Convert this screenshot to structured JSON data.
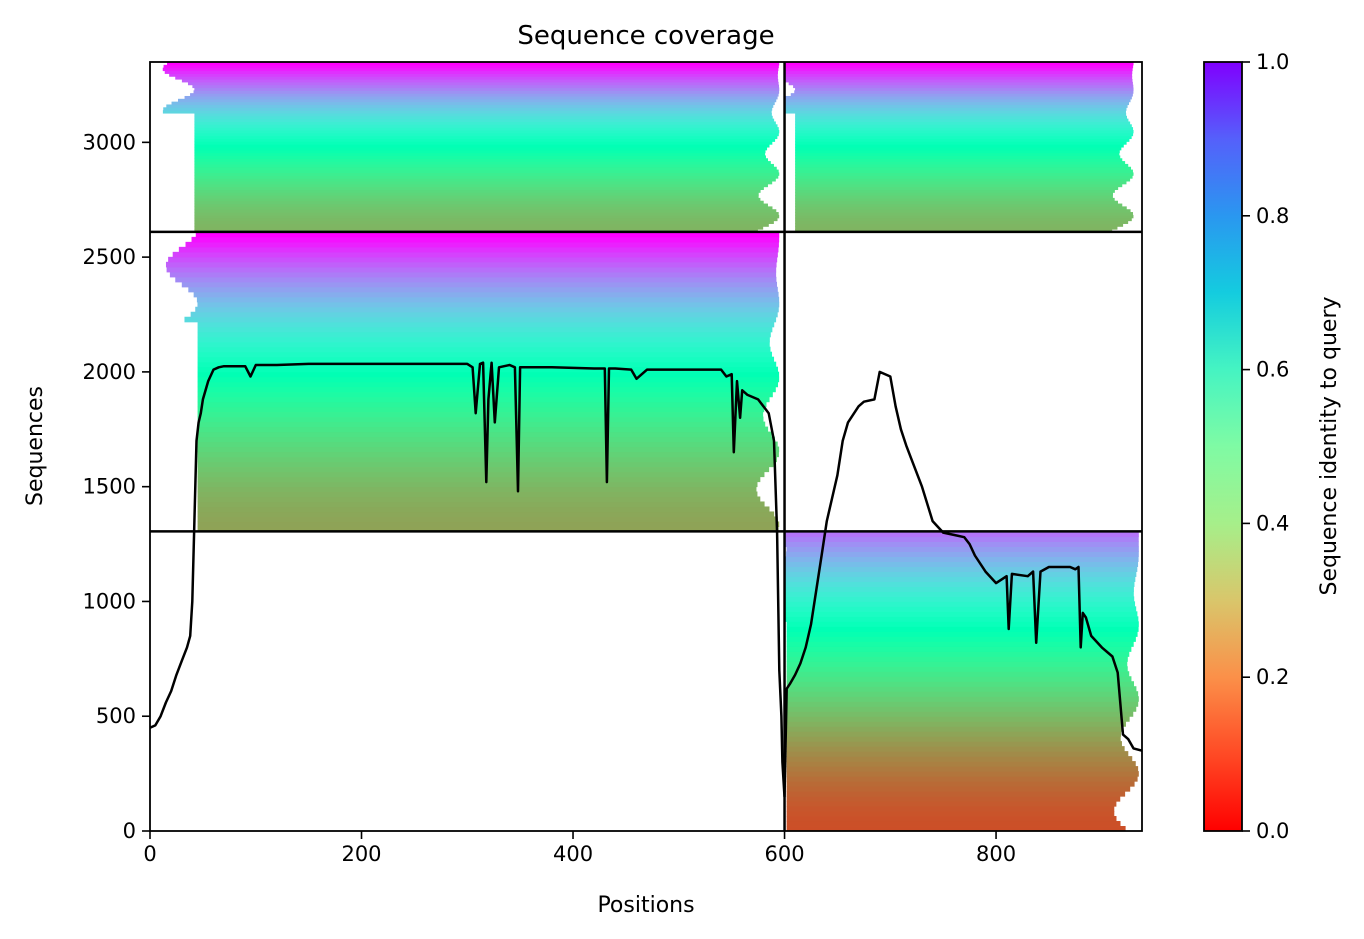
{
  "chart_data": {
    "type": "heatmap",
    "title": "Sequence coverage",
    "xlabel": "Positions",
    "ylabel": "Sequences",
    "xlim": [
      0,
      938
    ],
    "ylim": [
      0,
      3350
    ],
    "x_ticks": [
      0,
      200,
      400,
      600,
      800
    ],
    "y_ticks": [
      0,
      500,
      1000,
      1500,
      2000,
      2500,
      3000
    ],
    "grid": false,
    "colormap": "rainbow_r",
    "colorbar": {
      "label": "Sequence identity to query",
      "range": [
        0.0,
        1.0
      ],
      "ticks": [
        "0.0",
        "0.2",
        "0.4",
        "0.6",
        "0.8",
        "1.0"
      ]
    },
    "block_dividers": {
      "x": 600,
      "y": [
        1305,
        2610
      ]
    },
    "blocks": [
      {
        "name": "A_top_left",
        "x_range": [
          0,
          600
        ],
        "rows": [
          2610,
          3350
        ],
        "identity_range": [
          0.25,
          1.0
        ],
        "start_pos": 42,
        "end_pos": 595
      },
      {
        "name": "B_top_right",
        "x_range": [
          600,
          938
        ],
        "rows": [
          2610,
          3350
        ],
        "identity_range": [
          0.25,
          1.0
        ],
        "start_pos": 610,
        "end_pos": 930
      },
      {
        "name": "C_mid_left",
        "x_range": [
          0,
          600
        ],
        "rows": [
          1305,
          2610
        ],
        "identity_range": [
          0.22,
          1.0
        ],
        "start_pos": 45,
        "end_pos": 595
      },
      {
        "name": "D_bottom_right",
        "x_range": [
          600,
          938
        ],
        "rows": [
          0,
          1305
        ],
        "identity_range": [
          0.1,
          0.85
        ],
        "start_pos": 602,
        "end_pos": 935
      }
    ],
    "series": [
      {
        "x": [
          0,
          5,
          10,
          15,
          20,
          25,
          30,
          35,
          38,
          40,
          42,
          44,
          46,
          48,
          50,
          55,
          60,
          65,
          70,
          80,
          90,
          95,
          100,
          120,
          150,
          200,
          250,
          300,
          305,
          308,
          312,
          315,
          318,
          320,
          323,
          326,
          330,
          340,
          345,
          348,
          350,
          355,
          380,
          420,
          430,
          432,
          434,
          440,
          455,
          460,
          470,
          500,
          530,
          540,
          545,
          550,
          552,
          555,
          558,
          560,
          565,
          575,
          585,
          590,
          593,
          595,
          597,
          598,
          600,
          602,
          605,
          610,
          615,
          620,
          625,
          630,
          635,
          640,
          645,
          650,
          655,
          660,
          670,
          675,
          685,
          690,
          700,
          705,
          710,
          715,
          720,
          730,
          740,
          750,
          760,
          770,
          775,
          780,
          790,
          800,
          810,
          812,
          815,
          830,
          835,
          838,
          842,
          850,
          870,
          875,
          878,
          880,
          882,
          885,
          890,
          900,
          910,
          915,
          920,
          925,
          930,
          938
        ],
        "y": [
          450,
          460,
          500,
          560,
          610,
          680,
          740,
          800,
          850,
          1000,
          1350,
          1700,
          1780,
          1820,
          1880,
          1960,
          2010,
          2020,
          2025,
          2025,
          2025,
          1980,
          2030,
          2030,
          2035,
          2035,
          2035,
          2035,
          2020,
          1820,
          2035,
          2040,
          1520,
          1880,
          2040,
          1780,
          2020,
          2030,
          2020,
          1480,
          2020,
          2020,
          2020,
          2015,
          2015,
          1520,
          2015,
          2015,
          2010,
          1970,
          2010,
          2010,
          2010,
          2010,
          1980,
          1990,
          1650,
          1960,
          1800,
          1920,
          1900,
          1880,
          1820,
          1700,
          1300,
          700,
          500,
          300,
          150,
          620,
          640,
          680,
          730,
          800,
          900,
          1050,
          1200,
          1350,
          1450,
          1550,
          1700,
          1780,
          1850,
          1870,
          1880,
          2000,
          1980,
          1850,
          1750,
          1680,
          1620,
          1500,
          1350,
          1300,
          1290,
          1280,
          1250,
          1200,
          1130,
          1080,
          1110,
          880,
          1120,
          1110,
          1130,
          820,
          1130,
          1150,
          1150,
          1140,
          1150,
          800,
          950,
          930,
          850,
          800,
          760,
          690,
          420,
          400,
          360,
          350
        ]
      }
    ]
  }
}
